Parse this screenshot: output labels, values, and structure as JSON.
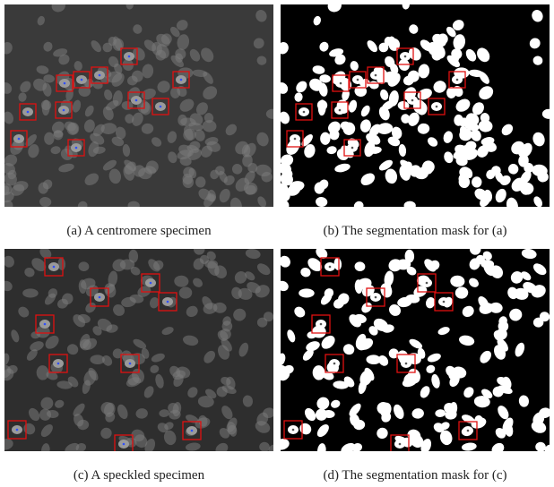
{
  "figure": {
    "panels": [
      {
        "caption": "(a) A centromere specimen"
      },
      {
        "caption": "(b) The segmentation mask for (a)"
      },
      {
        "caption": "(c) A speckled specimen"
      },
      {
        "caption": "(d) The segmentation mask for (c)"
      }
    ]
  }
}
